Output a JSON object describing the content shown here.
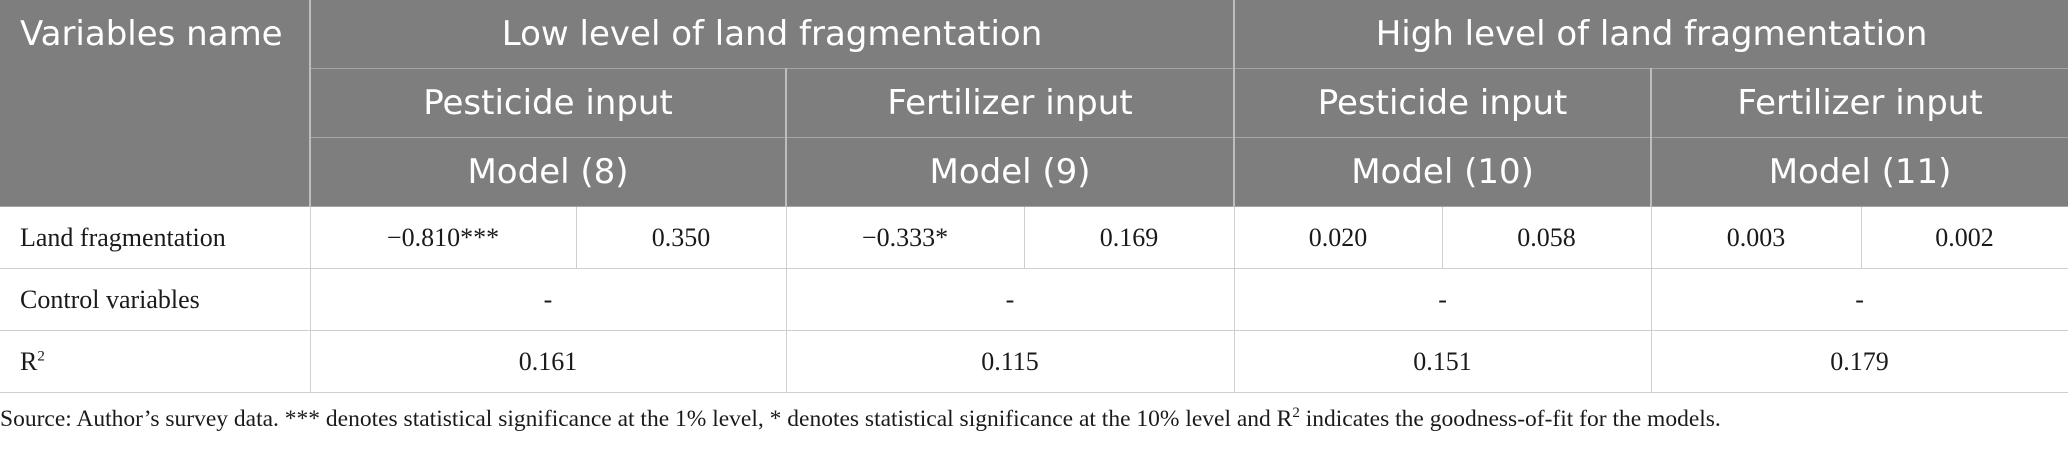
{
  "header": {
    "variables_name": "Variables name",
    "group_low": "Low level of land fragmentation",
    "group_high": "High level of land fragmentation",
    "low_pesticide": "Pesticide input",
    "low_fertilizer": "Fertilizer input",
    "high_pesticide": "Pesticide input",
    "high_fertilizer": "Fertilizer input",
    "model_8": "Model (8)",
    "model_9": "Model (9)",
    "model_10": "Model (10)",
    "model_11": "Model (11)"
  },
  "rows": {
    "land_fragmentation": {
      "label": "Land fragmentation",
      "m8_coef": "−0.810***",
      "m8_se": "0.350",
      "m9_coef": "−0.333*",
      "m9_se": "0.169",
      "m10_coef": "0.020",
      "m10_se": "0.058",
      "m11_coef": "0.003",
      "m11_se": "0.002"
    },
    "control_variables": {
      "label": "Control variables",
      "m8": "-",
      "m9": "-",
      "m10": "-",
      "m11": "-"
    },
    "r2": {
      "label_main": "R",
      "label_sup": "2",
      "m8": "0.161",
      "m9": "0.115",
      "m10": "0.151",
      "m11": "0.179"
    }
  },
  "note": {
    "before": "Source: Author’s survey data. *** denotes statistical significance at the 1% level, * denotes statistical significance at the 10% level and R",
    "sup": "2",
    "after": " indicates the goodness-of-fit for the models."
  }
}
